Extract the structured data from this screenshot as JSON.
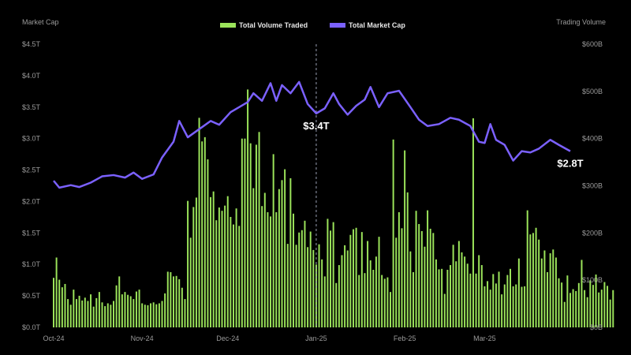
{
  "chart_data": {
    "type": "bar+line",
    "title": "",
    "legend": {
      "placement": "top-center",
      "items": [
        {
          "label": "Total Volume Traded",
          "color": "#9be35a"
        },
        {
          "label": "Total Market Cap",
          "color": "#7b61ff"
        }
      ]
    },
    "left_axis": {
      "label": "Market Cap",
      "ticks": [
        "$0.0T",
        "$0.5T",
        "$1.0T",
        "$1.5T",
        "$2.0T",
        "$2.5T",
        "$3.0T",
        "$3.5T",
        "$4.0T",
        "$4.5T"
      ],
      "ylim": [
        0,
        4.5
      ],
      "unit": "T"
    },
    "right_axis": {
      "label": "Trading Volume",
      "ticks": [
        "$0B",
        "$100B",
        "$200B",
        "$300B",
        "$400B",
        "$500B",
        "$600B"
      ],
      "ylim": [
        0,
        600
      ],
      "unit": "B"
    },
    "x_ticks": [
      "Oct-24",
      "Nov-24",
      "Dec-24",
      "Jan-25",
      "Feb-25",
      "Mar-25"
    ],
    "x_tick_dates": [
      "2024-10-01",
      "2024-11-01",
      "2024-12-01",
      "2025-01-01",
      "2025-02-01",
      "2025-03-01"
    ],
    "x_range": [
      "2024-10-01",
      "2025-03-31"
    ],
    "grid": false,
    "marker_line": {
      "date": "2025-01-01",
      "style": "dashed"
    },
    "annotations": [
      {
        "text": "$3.4T",
        "date": "2025-01-01",
        "value": 3.4
      },
      {
        "text": "$2.8T",
        "date": "2025-03-31",
        "value": 2.8
      }
    ],
    "series": [
      {
        "name": "Total Market Cap",
        "type": "line",
        "axis": "left",
        "color": "#7b61ff",
        "anchors": [
          [
            "2024-10-01",
            2.33
          ],
          [
            "2024-10-03",
            2.22
          ],
          [
            "2024-10-07",
            2.26
          ],
          [
            "2024-10-10",
            2.23
          ],
          [
            "2024-10-14",
            2.3
          ],
          [
            "2024-10-18",
            2.4
          ],
          [
            "2024-10-22",
            2.42
          ],
          [
            "2024-10-26",
            2.38
          ],
          [
            "2024-10-29",
            2.46
          ],
          [
            "2024-11-01",
            2.36
          ],
          [
            "2024-11-05",
            2.43
          ],
          [
            "2024-11-08",
            2.7
          ],
          [
            "2024-11-12",
            2.95
          ],
          [
            "2024-11-14",
            3.28
          ],
          [
            "2024-11-17",
            3.02
          ],
          [
            "2024-11-21",
            3.15
          ],
          [
            "2024-11-25",
            3.28
          ],
          [
            "2024-11-28",
            3.22
          ],
          [
            "2024-12-02",
            3.42
          ],
          [
            "2024-12-05",
            3.5
          ],
          [
            "2024-12-08",
            3.58
          ],
          [
            "2024-12-10",
            3.72
          ],
          [
            "2024-12-13",
            3.6
          ],
          [
            "2024-12-16",
            3.88
          ],
          [
            "2024-12-18",
            3.6
          ],
          [
            "2024-12-20",
            3.85
          ],
          [
            "2024-12-23",
            3.72
          ],
          [
            "2024-12-26",
            3.9
          ],
          [
            "2024-12-29",
            3.55
          ],
          [
            "2025-01-01",
            3.4
          ],
          [
            "2025-01-04",
            3.48
          ],
          [
            "2025-01-07",
            3.72
          ],
          [
            "2025-01-09",
            3.55
          ],
          [
            "2025-01-12",
            3.38
          ],
          [
            "2025-01-15",
            3.52
          ],
          [
            "2025-01-18",
            3.62
          ],
          [
            "2025-01-20",
            3.82
          ],
          [
            "2025-01-23",
            3.5
          ],
          [
            "2025-01-26",
            3.72
          ],
          [
            "2025-01-30",
            3.76
          ],
          [
            "2025-02-03",
            3.5
          ],
          [
            "2025-02-06",
            3.3
          ],
          [
            "2025-02-09",
            3.2
          ],
          [
            "2025-02-13",
            3.23
          ],
          [
            "2025-02-17",
            3.33
          ],
          [
            "2025-02-20",
            3.3
          ],
          [
            "2025-02-24",
            3.2
          ],
          [
            "2025-02-27",
            2.95
          ],
          [
            "2025-03-01",
            2.93
          ],
          [
            "2025-03-03",
            3.23
          ],
          [
            "2025-03-05",
            2.98
          ],
          [
            "2025-03-08",
            2.9
          ],
          [
            "2025-03-11",
            2.65
          ],
          [
            "2025-03-14",
            2.8
          ],
          [
            "2025-03-17",
            2.78
          ],
          [
            "2025-03-20",
            2.84
          ],
          [
            "2025-03-24",
            2.98
          ],
          [
            "2025-03-27",
            2.9
          ],
          [
            "2025-03-31",
            2.8
          ]
        ]
      },
      {
        "name": "Total Volume Traded",
        "type": "bar",
        "axis": "right",
        "color": "#9be35a",
        "daily_values": [
          105,
          148,
          101,
          85,
          92,
          60,
          48,
          80,
          60,
          67,
          57,
          63,
          56,
          70,
          44,
          62,
          75,
          53,
          45,
          51,
          48,
          56,
          89,
          108,
          70,
          75,
          69,
          66,
          60,
          76,
          80,
          51,
          48,
          47,
          51,
          53,
          49,
          51,
          56,
          72,
          118,
          117,
          108,
          109,
          102,
          84,
          60,
          268,
          190,
          255,
          275,
          444,
          394,
          403,
          356,
          276,
          288,
          227,
          254,
          247,
          258,
          278,
          234,
          218,
          252,
          215,
          400,
          400,
          504,
          390,
          295,
          387,
          414,
          257,
          285,
          244,
          235,
          367,
          244,
          293,
          312,
          335,
          177,
          316,
          241,
          175,
          201,
          206,
          226,
          170,
          203,
          164,
          133,
          176,
          144,
          108,
          230,
          205,
          223,
          94,
          132,
          153,
          174,
          163,
          196,
          208,
          211,
          111,
          202,
          115,
          183,
          142,
          122,
          150,
          192,
          111,
          103,
          106,
          75,
          398,
          190,
          244,
          210,
          375,
          286,
          161,
          117,
          247,
          219,
          204,
          171,
          248,
          209,
          200,
          144,
          123,
          124,
          71,
          122,
          132,
          175,
          140,
          183,
          159,
          150,
          135,
          114,
          443,
          114,
          153,
          132,
          87,
          98,
          80,
          113,
          93,
          118,
          70,
          91,
          111,
          124,
          87,
          91,
          146,
          86,
          87,
          248,
          197,
          200,
          211,
          186,
          146,
          163,
          117,
          157,
          165,
          148,
          104,
          95,
          54,
          110,
          73,
          81,
          77,
          94,
          143,
          79,
          64,
          100,
          90,
          112,
          74,
          80,
          96,
          88,
          59,
          79
        ]
      }
    ]
  }
}
